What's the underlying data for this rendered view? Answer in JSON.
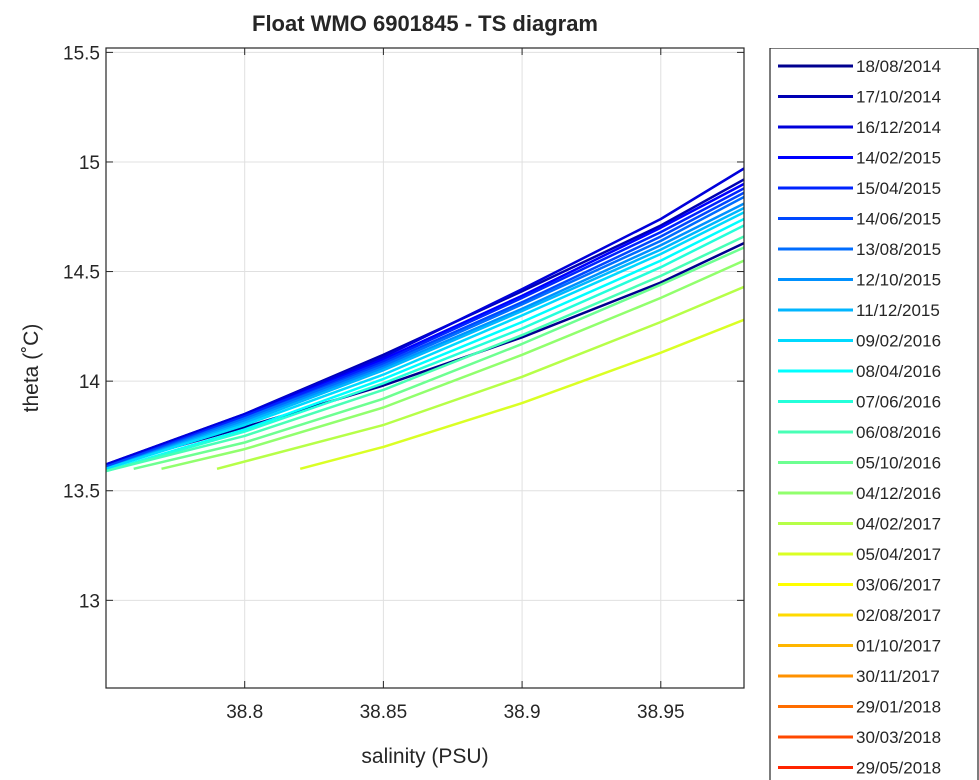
{
  "chart_data": {
    "type": "line",
    "title": "Float WMO 6901845 - TS diagram",
    "xlabel": "salinity (PSU)",
    "ylabel": "theta (˚C)",
    "xlim": [
      38.75,
      38.98
    ],
    "ylim": [
      12.6,
      15.52
    ],
    "xticks": [
      38.8,
      38.85,
      38.9,
      38.95
    ],
    "xtick_labels": [
      "38.8",
      "38.85",
      "38.9",
      "38.95"
    ],
    "yticks": [
      13,
      13.5,
      14,
      14.5,
      15,
      15.5
    ],
    "ytick_labels": [
      "13",
      "13.5",
      "14",
      "14.5",
      "15",
      "15.5"
    ],
    "grid": true,
    "legend_position": "right, outside",
    "series": [
      {
        "name": "18/08/2014",
        "color": "#00008f",
        "points": [
          [
            38.75,
            13.61
          ],
          [
            38.8,
            13.79
          ],
          [
            38.85,
            13.98
          ],
          [
            38.9,
            14.2
          ],
          [
            38.95,
            14.45
          ],
          [
            38.98,
            14.63
          ]
        ]
      },
      {
        "name": "17/10/2014",
        "color": "#0000b4",
        "points": [
          [
            38.75,
            13.62
          ],
          [
            38.8,
            13.85
          ],
          [
            38.85,
            14.12
          ],
          [
            38.9,
            14.41
          ],
          [
            38.95,
            14.71
          ],
          [
            38.98,
            14.92
          ]
        ]
      },
      {
        "name": "16/12/2014",
        "color": "#0000da",
        "points": [
          [
            38.75,
            13.62
          ],
          [
            38.8,
            13.85
          ],
          [
            38.85,
            14.11
          ],
          [
            38.9,
            14.42
          ],
          [
            38.95,
            14.74
          ],
          [
            38.98,
            14.97
          ]
        ]
      },
      {
        "name": "14/02/2015",
        "color": "#0000ff",
        "points": [
          [
            38.75,
            13.61
          ],
          [
            38.8,
            13.84
          ],
          [
            38.85,
            14.1
          ],
          [
            38.9,
            14.39
          ],
          [
            38.95,
            14.7
          ],
          [
            38.98,
            14.9
          ]
        ]
      },
      {
        "name": "15/04/2015",
        "color": "#0024ff",
        "points": [
          [
            38.75,
            13.61
          ],
          [
            38.8,
            13.84
          ],
          [
            38.85,
            14.09
          ],
          [
            38.9,
            14.38
          ],
          [
            38.95,
            14.68
          ],
          [
            38.98,
            14.88
          ]
        ]
      },
      {
        "name": "14/06/2015",
        "color": "#0048ff",
        "points": [
          [
            38.75,
            13.61
          ],
          [
            38.8,
            13.83
          ],
          [
            38.85,
            14.08
          ],
          [
            38.9,
            14.36
          ],
          [
            38.95,
            14.66
          ],
          [
            38.98,
            14.86
          ]
        ]
      },
      {
        "name": "13/08/2015",
        "color": "#006dff",
        "points": [
          [
            38.75,
            13.6
          ],
          [
            38.8,
            13.83
          ],
          [
            38.85,
            14.07
          ],
          [
            38.9,
            14.35
          ],
          [
            38.95,
            14.64
          ],
          [
            38.98,
            14.84
          ]
        ]
      },
      {
        "name": "12/10/2015",
        "color": "#0091ff",
        "points": [
          [
            38.75,
            13.6
          ],
          [
            38.8,
            13.82
          ],
          [
            38.85,
            14.06
          ],
          [
            38.9,
            14.33
          ],
          [
            38.95,
            14.62
          ],
          [
            38.98,
            14.81
          ]
        ]
      },
      {
        "name": "11/12/2015",
        "color": "#00b6ff",
        "points": [
          [
            38.75,
            13.6
          ],
          [
            38.8,
            13.81
          ],
          [
            38.85,
            14.05
          ],
          [
            38.9,
            14.32
          ],
          [
            38.95,
            14.6
          ],
          [
            38.98,
            14.79
          ]
        ]
      },
      {
        "name": "09/02/2016",
        "color": "#00daff",
        "points": [
          [
            38.75,
            13.6
          ],
          [
            38.8,
            13.8
          ],
          [
            38.85,
            14.03
          ],
          [
            38.9,
            14.3
          ],
          [
            38.95,
            14.58
          ],
          [
            38.98,
            14.77
          ]
        ]
      },
      {
        "name": "08/04/2016",
        "color": "#00ffff",
        "points": [
          [
            38.75,
            13.59
          ],
          [
            38.8,
            13.78
          ],
          [
            38.85,
            14.01
          ],
          [
            38.9,
            14.27
          ],
          [
            38.95,
            14.55
          ],
          [
            38.98,
            14.74
          ]
        ]
      },
      {
        "name": "07/06/2016",
        "color": "#24ffda",
        "points": [
          [
            38.75,
            13.59
          ],
          [
            38.8,
            13.77
          ],
          [
            38.85,
            13.99
          ],
          [
            38.9,
            14.24
          ],
          [
            38.95,
            14.52
          ],
          [
            38.98,
            14.71
          ]
        ]
      },
      {
        "name": "06/08/2016",
        "color": "#48ffb6",
        "points": [
          [
            38.75,
            13.59
          ],
          [
            38.8,
            13.75
          ],
          [
            38.85,
            13.96
          ],
          [
            38.9,
            14.21
          ],
          [
            38.95,
            14.48
          ],
          [
            38.98,
            14.66
          ]
        ]
      },
      {
        "name": "05/10/2016",
        "color": "#6dff91",
        "points": [
          [
            38.76,
            13.6
          ],
          [
            38.8,
            13.72
          ],
          [
            38.85,
            13.92
          ],
          [
            38.9,
            14.17
          ],
          [
            38.95,
            14.44
          ],
          [
            38.98,
            14.61
          ]
        ]
      },
      {
        "name": "04/12/2016",
        "color": "#91ff6d",
        "points": [
          [
            38.77,
            13.6
          ],
          [
            38.8,
            13.69
          ],
          [
            38.85,
            13.88
          ],
          [
            38.9,
            14.12
          ],
          [
            38.95,
            14.38
          ],
          [
            38.98,
            14.55
          ]
        ]
      },
      {
        "name": "04/02/2017",
        "color": "#b6ff48",
        "points": [
          [
            38.79,
            13.6
          ],
          [
            38.85,
            13.8
          ],
          [
            38.9,
            14.02
          ],
          [
            38.95,
            14.27
          ],
          [
            38.98,
            14.43
          ]
        ]
      },
      {
        "name": "05/04/2017",
        "color": "#daff24",
        "points": [
          [
            38.82,
            13.6
          ],
          [
            38.85,
            13.7
          ],
          [
            38.9,
            13.9
          ],
          [
            38.95,
            14.13
          ],
          [
            38.98,
            14.28
          ]
        ]
      },
      {
        "name": "03/06/2017",
        "color": "#ffff00",
        "points": []
      },
      {
        "name": "02/08/2017",
        "color": "#ffda00",
        "points": []
      },
      {
        "name": "01/10/2017",
        "color": "#ffb600",
        "points": []
      },
      {
        "name": "30/11/2017",
        "color": "#ff9100",
        "points": []
      },
      {
        "name": "29/01/2018",
        "color": "#ff6d00",
        "points": []
      },
      {
        "name": "30/03/2018",
        "color": "#ff4800",
        "points": []
      },
      {
        "name": "29/05/2018",
        "color": "#ff2400",
        "points": []
      }
    ]
  }
}
